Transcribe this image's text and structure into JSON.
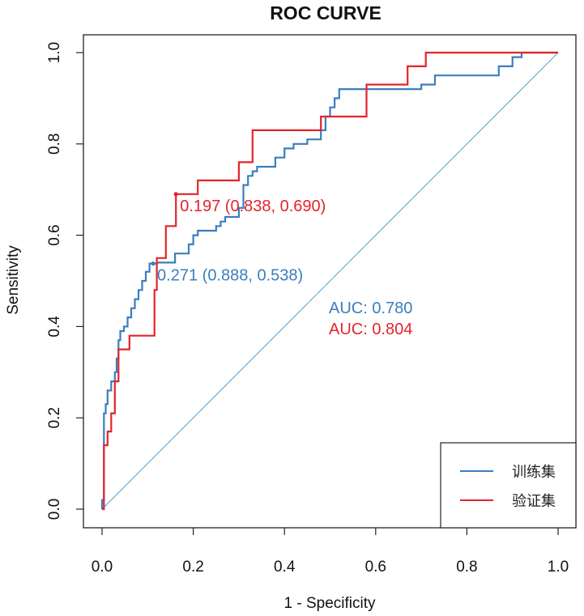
{
  "chart_data": {
    "type": "line",
    "title": "ROC CURVE",
    "xlabel": "1 - Specificity",
    "ylabel": "Sensitivity",
    "xlim": [
      0,
      1
    ],
    "ylim": [
      0,
      1
    ],
    "x_ticks": [
      "0.0",
      "0.2",
      "0.4",
      "0.6",
      "0.8",
      "1.0"
    ],
    "y_ticks": [
      "0.0",
      "0.2",
      "0.4",
      "0.6",
      "0.8",
      "1.0"
    ],
    "legend_position": "bottom-right",
    "diagonal_color": "#6aaed6",
    "series": [
      {
        "name": "训练集",
        "color": "#3a7ebf",
        "auc_label": "AUC: 0.780",
        "threshold_label": "0.271 (0.888, 0.538)",
        "threshold_point": [
          0.112,
          0.538
        ],
        "points": [
          [
            0,
            0
          ],
          [
            0,
            0.02
          ],
          [
            0.004,
            0.02
          ],
          [
            0.004,
            0.21
          ],
          [
            0.008,
            0.21
          ],
          [
            0.008,
            0.23
          ],
          [
            0.012,
            0.23
          ],
          [
            0.012,
            0.26
          ],
          [
            0.02,
            0.26
          ],
          [
            0.02,
            0.28
          ],
          [
            0.028,
            0.28
          ],
          [
            0.028,
            0.3
          ],
          [
            0.032,
            0.3
          ],
          [
            0.032,
            0.33
          ],
          [
            0.036,
            0.33
          ],
          [
            0.036,
            0.37
          ],
          [
            0.04,
            0.37
          ],
          [
            0.04,
            0.39
          ],
          [
            0.048,
            0.39
          ],
          [
            0.048,
            0.4
          ],
          [
            0.056,
            0.4
          ],
          [
            0.056,
            0.42
          ],
          [
            0.064,
            0.42
          ],
          [
            0.064,
            0.44
          ],
          [
            0.072,
            0.44
          ],
          [
            0.072,
            0.46
          ],
          [
            0.08,
            0.46
          ],
          [
            0.08,
            0.48
          ],
          [
            0.088,
            0.48
          ],
          [
            0.088,
            0.5
          ],
          [
            0.096,
            0.5
          ],
          [
            0.096,
            0.52
          ],
          [
            0.104,
            0.52
          ],
          [
            0.104,
            0.538
          ],
          [
            0.12,
            0.538
          ],
          [
            0.12,
            0.54
          ],
          [
            0.16,
            0.54
          ],
          [
            0.16,
            0.56
          ],
          [
            0.19,
            0.56
          ],
          [
            0.19,
            0.58
          ],
          [
            0.2,
            0.58
          ],
          [
            0.2,
            0.6
          ],
          [
            0.21,
            0.6
          ],
          [
            0.21,
            0.61
          ],
          [
            0.25,
            0.61
          ],
          [
            0.25,
            0.62
          ],
          [
            0.26,
            0.62
          ],
          [
            0.26,
            0.63
          ],
          [
            0.27,
            0.63
          ],
          [
            0.27,
            0.64
          ],
          [
            0.3,
            0.64
          ],
          [
            0.3,
            0.66
          ],
          [
            0.31,
            0.66
          ],
          [
            0.31,
            0.71
          ],
          [
            0.32,
            0.71
          ],
          [
            0.32,
            0.73
          ],
          [
            0.33,
            0.73
          ],
          [
            0.33,
            0.74
          ],
          [
            0.34,
            0.74
          ],
          [
            0.34,
            0.75
          ],
          [
            0.38,
            0.75
          ],
          [
            0.38,
            0.77
          ],
          [
            0.4,
            0.77
          ],
          [
            0.4,
            0.79
          ],
          [
            0.42,
            0.79
          ],
          [
            0.42,
            0.8
          ],
          [
            0.45,
            0.8
          ],
          [
            0.45,
            0.81
          ],
          [
            0.48,
            0.81
          ],
          [
            0.48,
            0.83
          ],
          [
            0.49,
            0.83
          ],
          [
            0.49,
            0.86
          ],
          [
            0.5,
            0.86
          ],
          [
            0.5,
            0.88
          ],
          [
            0.51,
            0.88
          ],
          [
            0.51,
            0.9
          ],
          [
            0.52,
            0.9
          ],
          [
            0.52,
            0.92
          ],
          [
            0.7,
            0.92
          ],
          [
            0.7,
            0.93
          ],
          [
            0.73,
            0.93
          ],
          [
            0.73,
            0.95
          ],
          [
            0.87,
            0.95
          ],
          [
            0.87,
            0.97
          ],
          [
            0.9,
            0.97
          ],
          [
            0.9,
            0.99
          ],
          [
            0.92,
            0.99
          ],
          [
            0.92,
            1.0
          ],
          [
            1.0,
            1.0
          ]
        ]
      },
      {
        "name": "验证集",
        "color": "#e3242b",
        "auc_label": "AUC: 0.804",
        "threshold_label": "0.197 (0.838, 0.690)",
        "threshold_point": [
          0.162,
          0.69
        ],
        "points": [
          [
            0,
            0
          ],
          [
            0.004,
            0
          ],
          [
            0.004,
            0.14
          ],
          [
            0.012,
            0.14
          ],
          [
            0.012,
            0.17
          ],
          [
            0.02,
            0.17
          ],
          [
            0.02,
            0.21
          ],
          [
            0.028,
            0.21
          ],
          [
            0.028,
            0.28
          ],
          [
            0.036,
            0.28
          ],
          [
            0.036,
            0.35
          ],
          [
            0.06,
            0.35
          ],
          [
            0.06,
            0.38
          ],
          [
            0.115,
            0.38
          ],
          [
            0.115,
            0.48
          ],
          [
            0.12,
            0.48
          ],
          [
            0.12,
            0.55
          ],
          [
            0.14,
            0.55
          ],
          [
            0.14,
            0.62
          ],
          [
            0.162,
            0.62
          ],
          [
            0.162,
            0.69
          ],
          [
            0.21,
            0.69
          ],
          [
            0.21,
            0.72
          ],
          [
            0.3,
            0.72
          ],
          [
            0.3,
            0.76
          ],
          [
            0.33,
            0.76
          ],
          [
            0.33,
            0.83
          ],
          [
            0.48,
            0.83
          ],
          [
            0.48,
            0.86
          ],
          [
            0.58,
            0.86
          ],
          [
            0.58,
            0.93
          ],
          [
            0.67,
            0.93
          ],
          [
            0.67,
            0.97
          ],
          [
            0.71,
            0.97
          ],
          [
            0.71,
            1.0
          ],
          [
            1.0,
            1.0
          ]
        ]
      }
    ]
  }
}
